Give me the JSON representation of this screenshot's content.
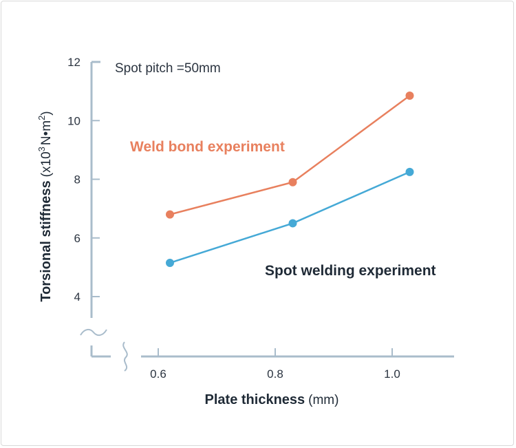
{
  "chart_data": {
    "type": "line",
    "annotation": "Spot pitch =50mm",
    "xlabel_bold": "Plate thickness",
    "xlabel_unit": "(mm)",
    "ylabel_bold": "Torsional stiffness",
    "ylabel_unit_pre": "(x10",
    "ylabel_unit_exp1": "3",
    "ylabel_unit_mid": "N•m",
    "ylabel_unit_exp2": "2",
    "ylabel_unit_post": ")",
    "x_ticks": [
      "0.6",
      "0.8",
      "1.0"
    ],
    "y_ticks": [
      "4",
      "6",
      "8",
      "10",
      "12"
    ],
    "x_tick_values": [
      0.6,
      0.8,
      1.0
    ],
    "y_tick_values": [
      4,
      6,
      8,
      10,
      12
    ],
    "xlim": [
      0.55,
      1.05
    ],
    "ylim": [
      4,
      12
    ],
    "axis_breaks": true,
    "grid": false,
    "legend": "inline labels",
    "series": [
      {
        "name": "Weld bond experiment",
        "color": "#e8805e",
        "x": [
          0.62,
          0.83,
          1.03
        ],
        "values": [
          6.8,
          7.9,
          10.85
        ]
      },
      {
        "name": "Spot welding experiment",
        "color": "#45a9d6",
        "x": [
          0.62,
          0.83,
          1.03
        ],
        "values": [
          5.15,
          6.5,
          8.25
        ]
      }
    ]
  },
  "colors": {
    "axis": "#a9bccb",
    "text": "#2b3440",
    "spot_label": "#1f2a36"
  }
}
